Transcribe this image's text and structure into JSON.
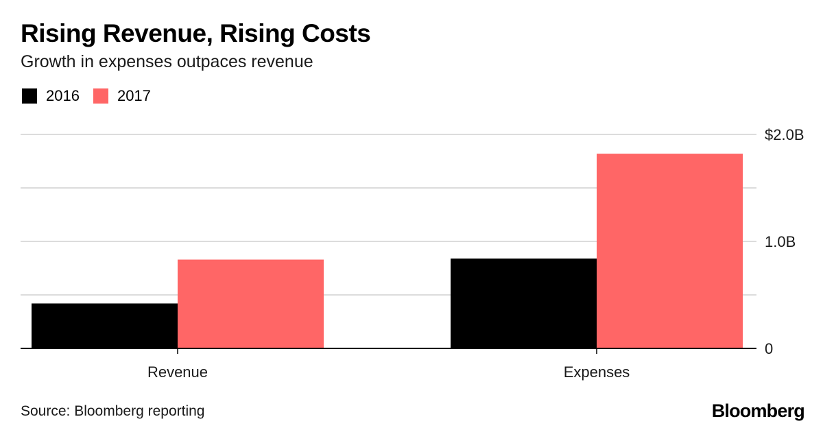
{
  "title": "Rising Revenue, Rising Costs",
  "subtitle": "Growth in expenses outpaces revenue",
  "source": "Source: Bloomberg reporting",
  "brand": "Bloomberg",
  "legend": [
    {
      "label": "2016",
      "color": "#000000"
    },
    {
      "label": "2017",
      "color": "#ff6666"
    }
  ],
  "chart_data": {
    "type": "bar",
    "categories": [
      "Revenue",
      "Expenses"
    ],
    "series": [
      {
        "name": "2016",
        "values": [
          0.42,
          0.84
        ],
        "color": "#000000"
      },
      {
        "name": "2017",
        "values": [
          0.83,
          1.82
        ],
        "color": "#ff6666"
      }
    ],
    "ylim": [
      0,
      2.0
    ],
    "y_ticks": [
      {
        "value": 0,
        "label": "0"
      },
      {
        "value": 1.0,
        "label": "1.0B"
      },
      {
        "value": 2.0,
        "label": "$2.0B"
      }
    ],
    "gridlines": [
      0.5,
      1.0,
      1.5,
      2.0
    ],
    "xlabel": "",
    "ylabel": "",
    "grid": true,
    "legend_position": "top-left"
  }
}
